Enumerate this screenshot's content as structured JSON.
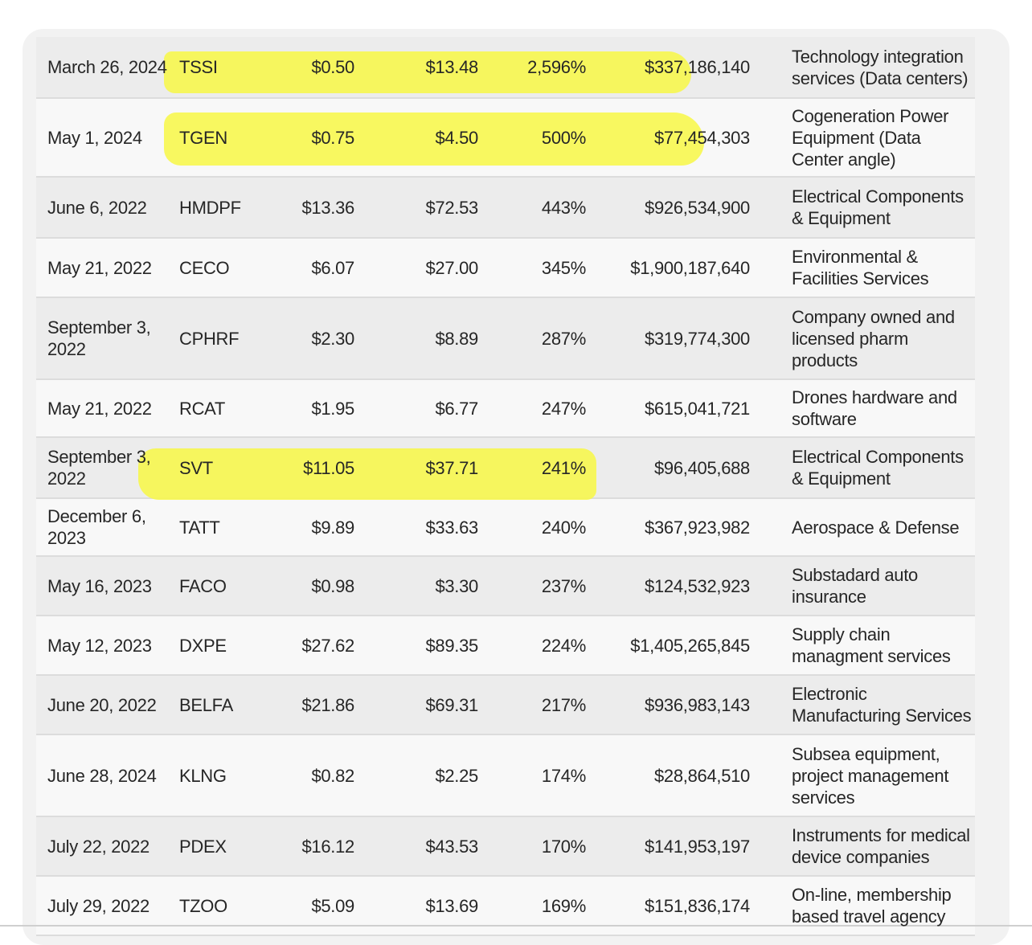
{
  "table": {
    "rows": [
      {
        "date": "March 26, 2024",
        "ticker": "TSSI",
        "low": "$0.50",
        "high": "$13.48",
        "gain": "2,596%",
        "market_cap": "$337,186,140",
        "description": "Technology integration services (Data centers)"
      },
      {
        "date": "May 1, 2024",
        "ticker": "TGEN",
        "low": "$0.75",
        "high": "$4.50",
        "gain": "500%",
        "market_cap": "$77,454,303",
        "description": "Cogeneration Power Equipment (Data Center angle)"
      },
      {
        "date": "June 6, 2022",
        "ticker": "HMDPF",
        "low": "$13.36",
        "high": "$72.53",
        "gain": "443%",
        "market_cap": "$926,534,900",
        "description": "Electrical Components & Equipment"
      },
      {
        "date": "May 21, 2022",
        "ticker": "CECO",
        "low": "$6.07",
        "high": "$27.00",
        "gain": "345%",
        "market_cap": "$1,900,187,640",
        "description": "Environmental & Facilities Services"
      },
      {
        "date": "September 3, 2022",
        "ticker": "CPHRF",
        "low": "$2.30",
        "high": "$8.89",
        "gain": "287%",
        "market_cap": "$319,774,300",
        "description": "Company owned and licensed pharm products"
      },
      {
        "date": "May 21, 2022",
        "ticker": "RCAT",
        "low": "$1.95",
        "high": "$6.77",
        "gain": "247%",
        "market_cap": "$615,041,721",
        "description": "Drones hardware and software"
      },
      {
        "date": "September 3, 2022",
        "ticker": "SVT",
        "low": "$11.05",
        "high": "$37.71",
        "gain": "241%",
        "market_cap": "$96,405,688",
        "description": "Electrical Components & Equipment"
      },
      {
        "date": "December 6, 2023",
        "ticker": "TATT",
        "low": "$9.89",
        "high": "$33.63",
        "gain": "240%",
        "market_cap": "$367,923,982",
        "description": "Aerospace & Defense"
      },
      {
        "date": "May 16, 2023",
        "ticker": "FACO",
        "low": "$0.98",
        "high": "$3.30",
        "gain": "237%",
        "market_cap": "$124,532,923",
        "description": "Substadard auto insurance"
      },
      {
        "date": "May 12, 2023",
        "ticker": "DXPE",
        "low": "$27.62",
        "high": "$89.35",
        "gain": "224%",
        "market_cap": "$1,405,265,845",
        "description": "Supply chain managment services"
      },
      {
        "date": "June 20, 2022",
        "ticker": "BELFA",
        "low": "$21.86",
        "high": "$69.31",
        "gain": "217%",
        "market_cap": "$936,983,143",
        "description": "Electronic Manufacturing Services"
      },
      {
        "date": "June 28, 2024",
        "ticker": "KLNG",
        "low": "$0.82",
        "high": "$2.25",
        "gain": "174%",
        "market_cap": "$28,864,510",
        "description": "Subsea equipment, project management services"
      },
      {
        "date": "July 22, 2022",
        "ticker": "PDEX",
        "low": "$16.12",
        "high": "$43.53",
        "gain": "170%",
        "market_cap": "$141,953,197",
        "description": "Instruments for medical device companies"
      },
      {
        "date": "July 29, 2022",
        "ticker": "TZOO",
        "low": "$5.09",
        "high": "$13.69",
        "gain": "169%",
        "market_cap": "$151,836,174",
        "description": "On-line, membership based travel agency"
      }
    ]
  },
  "colors": {
    "highlight": "#f7f74a",
    "row_odd": "#ececec",
    "row_even": "#f8f8f8",
    "text": "#262626"
  }
}
